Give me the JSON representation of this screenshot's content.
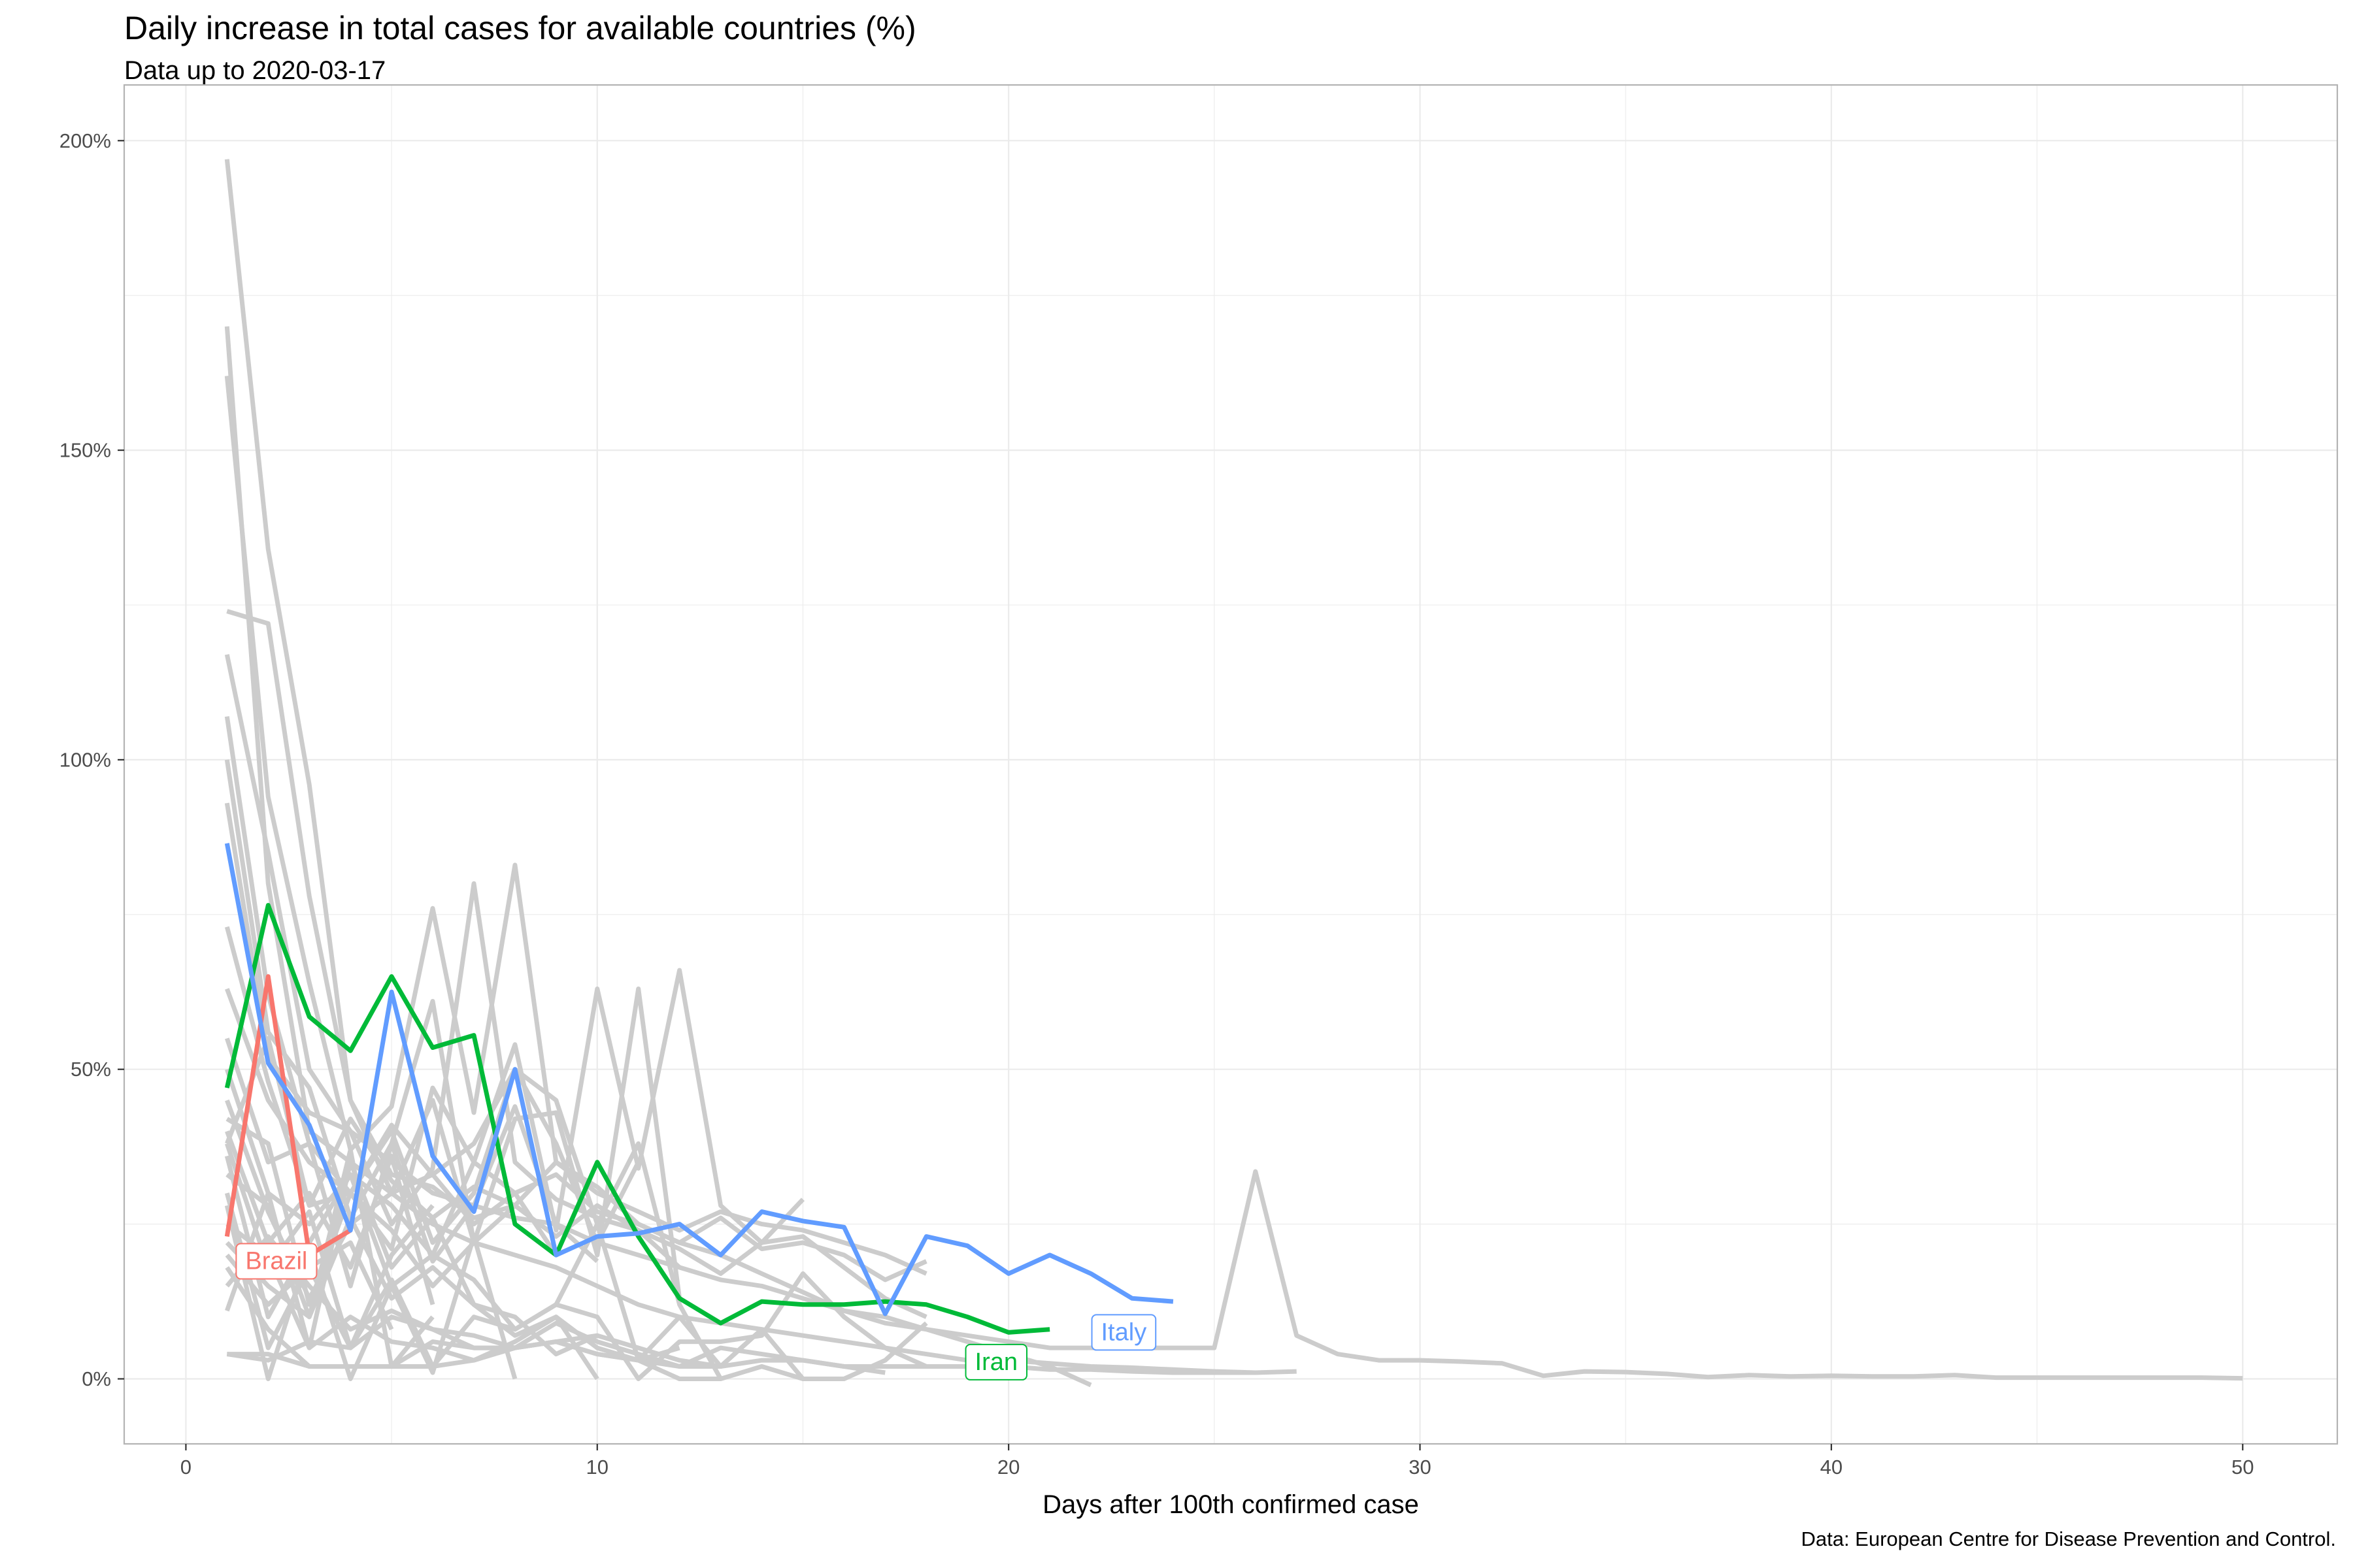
{
  "title": "Daily increase in total cases for available countries (%)",
  "subtitle": "Data up to 2020-03-17",
  "caption": "Data: European Centre for Disease Prevention and Control.",
  "colors": {
    "Brazil": "#F8766D",
    "Iran": "#00BA38",
    "Italy": "#619CFF",
    "other": "#cccccc",
    "grid": "#ebebeb",
    "panel_border": "#b3b3b3"
  },
  "chart_data": {
    "type": "line",
    "xlabel": "Days after 100th confirmed case",
    "ylabel": "",
    "xlim": [
      -1.5,
      52.3
    ],
    "ylim": [
      -0.105,
      2.09
    ],
    "x_ticks": [
      0,
      10,
      20,
      30,
      40,
      50
    ],
    "x_tick_labels": [
      "0",
      "10",
      "20",
      "30",
      "40",
      "50"
    ],
    "y_ticks": [
      0,
      0.5,
      1,
      1.5,
      2
    ],
    "y_tick_labels": [
      "0%",
      "50%",
      "100%",
      "150%",
      "200%"
    ],
    "grid": true,
    "highlighted": [
      {
        "name": "Brazil",
        "x": [
          1,
          2,
          3,
          4
        ],
        "y": [
          0.23,
          0.65,
          0.2,
          0.24
        ]
      },
      {
        "name": "Iran",
        "x": [
          1,
          2,
          3,
          4,
          5,
          6,
          7,
          8,
          9,
          10,
          11,
          12,
          13,
          14,
          15,
          16,
          17,
          18,
          19,
          20,
          21
        ],
        "y": [
          0.47,
          0.765,
          0.585,
          0.53,
          0.65,
          0.535,
          0.555,
          0.25,
          0.2,
          0.35,
          0.23,
          0.13,
          0.09,
          0.125,
          0.12,
          0.12,
          0.125,
          0.12,
          0.1,
          0.075,
          0.08
        ]
      },
      {
        "name": "Italy",
        "x": [
          1,
          2,
          3,
          4,
          5,
          6,
          7,
          8,
          9,
          10,
          11,
          12,
          13,
          14,
          15,
          16,
          17,
          18,
          19,
          20,
          21,
          22,
          23,
          24
        ],
        "y": [
          0.865,
          0.51,
          0.41,
          0.24,
          0.625,
          0.36,
          0.27,
          0.5,
          0.2,
          0.23,
          0.235,
          0.25,
          0.2,
          0.27,
          0.255,
          0.245,
          0.105,
          0.23,
          0.215,
          0.17,
          0.2,
          0.17,
          0.13,
          0.125
        ]
      }
    ],
    "series": [
      {
        "x": [
          1,
          2,
          3,
          4,
          5,
          6,
          7,
          8,
          9,
          10,
          11,
          12,
          13,
          14,
          15,
          16,
          17,
          18,
          19,
          20,
          21,
          22,
          23,
          24,
          25,
          26,
          27,
          28,
          29,
          30,
          31,
          32,
          33,
          34,
          35,
          36,
          37,
          38,
          39,
          40,
          41,
          42,
          43,
          44,
          45,
          46,
          47,
          48,
          49,
          50
        ],
        "y": [
          1.97,
          1.34,
          0.96,
          0.45,
          0.3,
          0.33,
          0.25,
          0.3,
          0.33,
          0.27,
          0.25,
          0.22,
          0.2,
          0.17,
          0.14,
          0.11,
          0.09,
          0.08,
          0.07,
          0.06,
          0.05,
          0.05,
          0.05,
          0.05,
          0.05,
          0.335,
          0.07,
          0.04,
          0.03,
          0.03,
          0.028,
          0.025,
          0.005,
          0.012,
          0.011,
          0.008,
          0.003,
          0.006,
          0.004,
          0.005,
          0.004,
          0.004,
          0.006,
          0.002,
          0.002,
          0.002,
          0.002,
          0.002,
          0.002,
          0.001
        ]
      },
      {
        "x": [
          1,
          2,
          3,
          4,
          5,
          6,
          7,
          8,
          9,
          10,
          11,
          12,
          13,
          14,
          15,
          16,
          17,
          18,
          19,
          20,
          21,
          22,
          23,
          24,
          25,
          26,
          27
        ],
        "y": [
          1.7,
          0.8,
          0.4,
          0.35,
          0.3,
          0.25,
          0.22,
          0.2,
          0.18,
          0.15,
          0.12,
          0.1,
          0.09,
          0.08,
          0.07,
          0.06,
          0.05,
          0.04,
          0.03,
          0.03,
          0.025,
          0.02,
          0.018,
          0.015,
          0.012,
          0.01,
          0.012
        ]
      },
      {
        "x": [
          1,
          2,
          3,
          4,
          5,
          6,
          7,
          8,
          9,
          10,
          11,
          12,
          13,
          14,
          15,
          16,
          17,
          18
        ],
        "y": [
          1.62,
          0.94,
          0.64,
          0.37,
          0.44,
          0.76,
          0.43,
          0.83,
          0.35,
          0.31,
          0.25,
          0.22,
          0.26,
          0.21,
          0.22,
          0.2,
          0.16,
          0.19
        ]
      },
      {
        "x": [
          1,
          2,
          3,
          4,
          5,
          6,
          7,
          8,
          9,
          10,
          11,
          12,
          13,
          14,
          15,
          16,
          17,
          18
        ],
        "y": [
          1.24,
          1.22,
          0.78,
          0.45,
          0.33,
          0.31,
          0.26,
          0.28,
          0.35,
          0.3,
          0.27,
          0.24,
          0.27,
          0.25,
          0.24,
          0.22,
          0.2,
          0.17
        ]
      },
      {
        "x": [
          1,
          2,
          3,
          4,
          5,
          6,
          7,
          8,
          9,
          10,
          11,
          12,
          13,
          14,
          15,
          16,
          17,
          18,
          19,
          20,
          21,
          22
        ],
        "y": [
          1.17,
          0.85,
          0.5,
          0.4,
          0.35,
          0.3,
          0.28,
          0.26,
          0.25,
          0.22,
          0.2,
          0.18,
          0.16,
          0.15,
          0.13,
          0.11,
          0.1,
          0.08,
          0.06,
          0.04,
          0.02,
          -0.01
        ]
      },
      {
        "x": [
          1,
          2,
          3,
          4,
          5,
          6,
          7,
          8,
          9,
          10,
          11,
          12,
          13,
          14,
          15
        ],
        "y": [
          1.07,
          0.62,
          0.38,
          0.3,
          0.21,
          0.47,
          0.35,
          0.54,
          0.24,
          0.63,
          0.34,
          0.66,
          0.28,
          0.22,
          0.29
        ]
      },
      {
        "x": [
          1,
          2,
          3,
          4,
          5,
          6,
          7,
          8,
          9,
          10,
          11,
          12
        ],
        "y": [
          1.0,
          0.56,
          0.47,
          0.26,
          0.38,
          0.61,
          0.22,
          0.42,
          0.43,
          0.2,
          0.63,
          0.13
        ]
      },
      {
        "x": [
          1,
          2,
          3,
          4,
          5,
          6,
          7,
          8,
          9,
          10,
          11,
          12
        ],
        "y": [
          0.93,
          0.52,
          0.43,
          0.4,
          0.25,
          0.34,
          0.8,
          0.35,
          0.29,
          0.26,
          0.24,
          0.18
        ]
      },
      {
        "x": [
          1,
          2,
          3,
          4,
          5,
          6,
          7,
          8,
          9,
          10,
          11,
          12,
          13
        ],
        "y": [
          0.73,
          0.48,
          0.28,
          0.3,
          0.4,
          0.22,
          0.3,
          0.5,
          0.45,
          0.25,
          0.38,
          0.12,
          0.0
        ]
      },
      {
        "x": [
          1,
          2,
          3,
          4,
          5,
          6,
          7,
          8,
          9,
          10,
          11
        ],
        "y": [
          0.63,
          0.45,
          0.35,
          0.3,
          0.41,
          0.33,
          0.38,
          0.5,
          0.38,
          0.22,
          0.35
        ]
      },
      {
        "x": [
          1,
          2,
          3,
          4,
          5,
          6,
          7,
          8,
          9,
          10
        ],
        "y": [
          0.55,
          0.35,
          0.38,
          0.15,
          0.38,
          0.19,
          0.28,
          0.44,
          0.25,
          0.19
        ]
      },
      {
        "x": [
          1,
          2,
          3,
          4,
          5,
          6,
          7,
          8,
          9
        ],
        "y": [
          0.5,
          0.3,
          0.25,
          0.33,
          0.15,
          0.2,
          0.35,
          0.3,
          0.2
        ]
      },
      {
        "x": [
          1,
          2,
          3,
          4,
          5,
          6,
          7,
          8
        ],
        "y": [
          0.45,
          0.27,
          0.13,
          0.25,
          0.3,
          0.45,
          0.22,
          0.28
        ]
      },
      {
        "x": [
          1,
          2,
          3,
          4,
          5,
          6,
          7
        ],
        "y": [
          0.42,
          0.38,
          0.12,
          0.3,
          0.24,
          0.15,
          0.22
        ]
      },
      {
        "x": [
          1,
          2,
          3,
          4,
          5,
          6
        ],
        "y": [
          0.4,
          0.22,
          0.3,
          0.18,
          0.36,
          0.12
        ]
      },
      {
        "x": [
          1,
          2,
          3,
          4,
          5,
          6
        ],
        "y": [
          0.38,
          0.18,
          0.27,
          0.05,
          0.2,
          0.28
        ]
      },
      {
        "x": [
          1,
          2,
          3,
          4,
          5,
          6,
          7,
          8,
          9,
          10,
          11,
          12
        ],
        "y": [
          0.36,
          0.1,
          0.22,
          0.33,
          0.28,
          0.2,
          0.16,
          0.08,
          0.12,
          0.25,
          0.03,
          0.05
        ]
      },
      {
        "x": [
          1,
          2,
          3,
          4,
          5,
          6
        ],
        "y": [
          0.33,
          0.28,
          0.1,
          0.37,
          0.02,
          0.1
        ]
      },
      {
        "x": [
          1,
          2,
          3,
          4,
          5
        ],
        "y": [
          0.3,
          0.05,
          0.18,
          0.22,
          0.08
        ]
      },
      {
        "x": [
          1,
          2,
          3,
          4,
          5,
          6,
          7,
          8
        ],
        "y": [
          0.28,
          0.0,
          0.21,
          0.0,
          0.15,
          0.01,
          0.23,
          0.0
        ]
      },
      {
        "x": [
          1,
          2,
          3,
          4,
          5,
          6,
          7,
          8,
          9,
          10
        ],
        "y": [
          0.25,
          0.2,
          0.05,
          0.35,
          0.18,
          0.26,
          0.12,
          0.07,
          0.1,
          0.0
        ]
      },
      {
        "x": [
          1,
          2,
          3,
          4,
          5,
          6,
          7,
          8,
          9,
          10,
          11,
          12,
          13,
          14,
          15,
          16,
          17,
          18
        ],
        "y": [
          0.22,
          0.15,
          0.1,
          0.26,
          0.13,
          0.18,
          0.12,
          0.1,
          0.04,
          0.07,
          0.05,
          0.03,
          0.02,
          0.08,
          0.0,
          0.0,
          0.03,
          0.09
        ]
      },
      {
        "x": [
          1,
          2,
          3,
          4,
          5,
          6,
          7,
          8,
          9,
          10,
          11,
          12,
          13,
          14,
          15,
          16,
          17,
          18
        ],
        "y": [
          0.2,
          0.12,
          0.18,
          0.05,
          0.16,
          0.02,
          0.1,
          0.08,
          0.12,
          0.1,
          0.0,
          0.06,
          0.06,
          0.07,
          0.17,
          0.1,
          0.05,
          0.02
        ]
      },
      {
        "x": [
          1,
          2,
          3,
          4,
          5,
          6,
          7,
          8,
          9,
          10,
          11,
          12,
          13,
          14,
          15,
          16,
          17
        ],
        "y": [
          0.18,
          0.08,
          0.02,
          0.02,
          0.02,
          0.06,
          0.05,
          0.05,
          0.09,
          0.06,
          0.04,
          0.02,
          0.05,
          0.04,
          0.03,
          0.02,
          0.01
        ]
      },
      {
        "x": [
          1,
          2,
          3,
          4,
          5,
          6,
          7,
          8,
          9,
          10,
          11,
          12,
          13,
          14
        ],
        "y": [
          0.15,
          0.23,
          0.15,
          0.08,
          0.11,
          0.08,
          0.07,
          0.05,
          0.06,
          0.04,
          0.03,
          0.1,
          0.02,
          0.08
        ]
      },
      {
        "x": [
          1,
          2,
          3,
          4,
          5,
          6,
          7,
          8,
          9,
          10,
          11,
          12,
          13,
          14,
          15,
          16
        ],
        "y": [
          0.11,
          0.3,
          0.05,
          0.1,
          0.06,
          0.05,
          0.03,
          0.06,
          0.1,
          0.05,
          0.03,
          0.0,
          0.0,
          0.02,
          0.0,
          0.0
        ]
      },
      {
        "x": [
          1,
          2,
          3,
          4,
          5,
          6,
          7,
          8,
          9,
          10
        ],
        "y": [
          0.04,
          0.04,
          0.02,
          0.02,
          0.02,
          0.02,
          0.03,
          0.05,
          0.06,
          0.07
        ]
      },
      {
        "x": [
          1,
          2,
          3,
          4,
          5,
          6,
          7,
          8,
          9,
          10,
          11,
          12,
          13,
          14,
          15,
          16,
          17,
          18,
          19,
          20,
          21,
          22,
          23,
          24,
          25,
          26
        ],
        "y": [
          0.04,
          0.03,
          0.06,
          0.05,
          0.1,
          0.08,
          0.05,
          0.05,
          0.06,
          0.04,
          0.03,
          0.02,
          0.02,
          0.03,
          0.03,
          0.02,
          0.02,
          0.02,
          0.02,
          0.02,
          0.015,
          0.015,
          0.012,
          0.01,
          0.01,
          0.01
        ]
      },
      {
        "x": [
          1,
          2,
          3,
          4,
          5,
          6,
          7,
          8,
          9,
          10,
          11,
          12,
          13,
          14,
          15,
          16,
          17,
          18
        ],
        "y": [
          0.38,
          0.55,
          0.28,
          0.42,
          0.32,
          0.26,
          0.31,
          0.28,
          0.23,
          0.28,
          0.24,
          0.21,
          0.17,
          0.22,
          0.23,
          0.18,
          0.13,
          0.1
        ]
      }
    ],
    "labels": [
      {
        "series": "Brazil",
        "text": "Brazil",
        "x": 2.2,
        "y": 0.19
      },
      {
        "series": "Italy",
        "text": "Italy",
        "x": 22.8,
        "y": 0.075
      },
      {
        "series": "Iran",
        "text": "Iran",
        "x": 19.7,
        "y": 0.027
      }
    ]
  }
}
